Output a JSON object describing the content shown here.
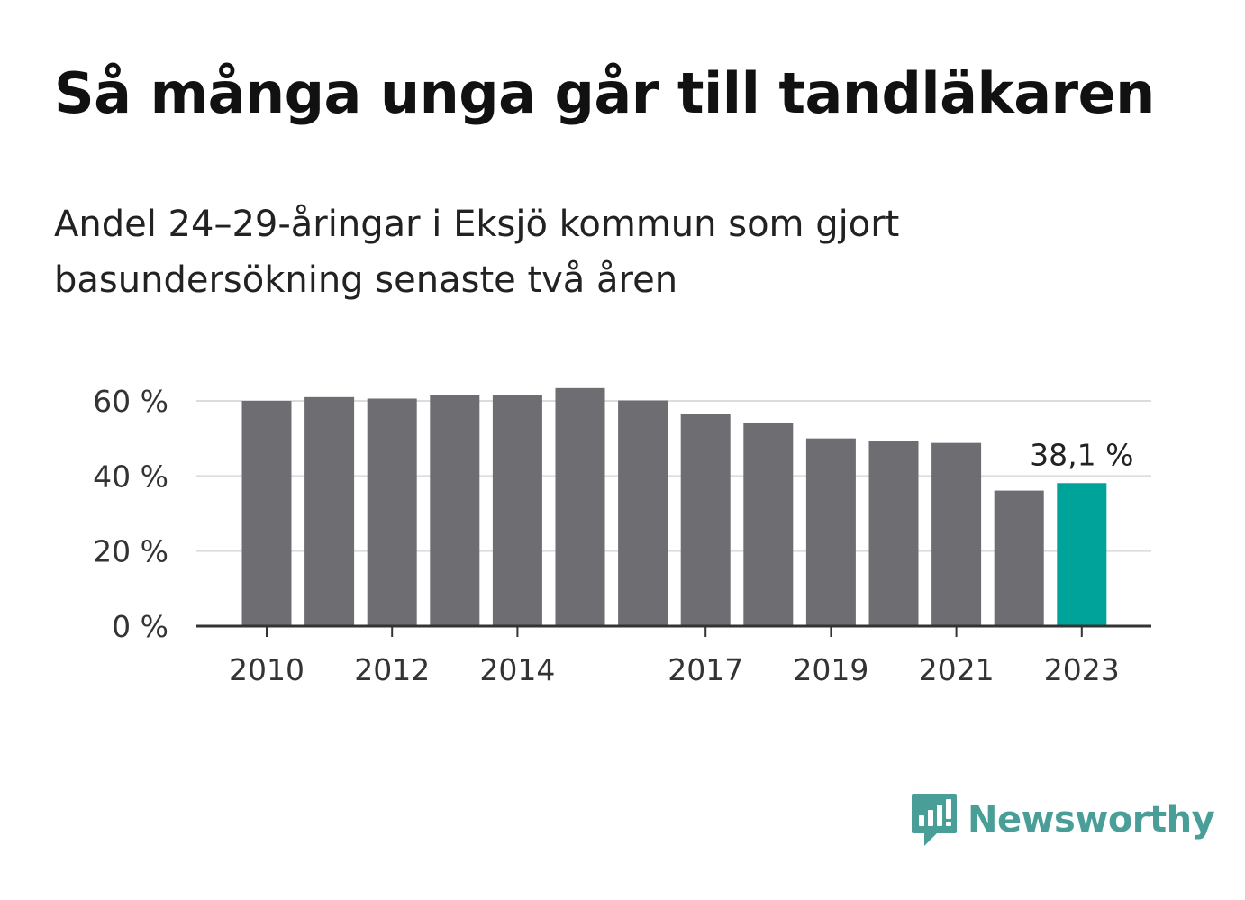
{
  "header": {
    "title": "Så många unga går till tandläkaren",
    "subtitle": "Andel 24–29-åringar i Eksjö kommun som gjort basundersökning senaste två åren"
  },
  "chart_data": {
    "type": "bar",
    "categories": [
      "2010",
      "2011",
      "2012",
      "2013",
      "2014",
      "2015",
      "2016",
      "2017",
      "2018",
      "2019",
      "2020",
      "2021",
      "2022",
      "2023"
    ],
    "values": [
      60.0,
      61.0,
      60.6,
      61.5,
      61.5,
      63.4,
      60.1,
      56.5,
      54.0,
      50.0,
      49.3,
      48.8,
      36.1,
      38.1
    ],
    "x_tick_labels": [
      "2010",
      "2012",
      "2014",
      "2017",
      "2019",
      "2021",
      "2023"
    ],
    "y_ticks": [
      0,
      20,
      40,
      60
    ],
    "y_tick_labels": [
      "0 %",
      "20 %",
      "40 %",
      "60 %"
    ],
    "ylim": [
      0,
      66
    ],
    "highlight_index": 13,
    "highlight_label": "38,1 %",
    "colors": {
      "bar": "#6e6d72",
      "highlight": "#00a39a",
      "grid": "#dcdcdc",
      "axis": "#333333"
    },
    "grid": true
  },
  "brand": {
    "name": "Newsworthy",
    "logo_icon": "newsworthy-chart-bubble-icon",
    "color": "#4a9e98"
  }
}
